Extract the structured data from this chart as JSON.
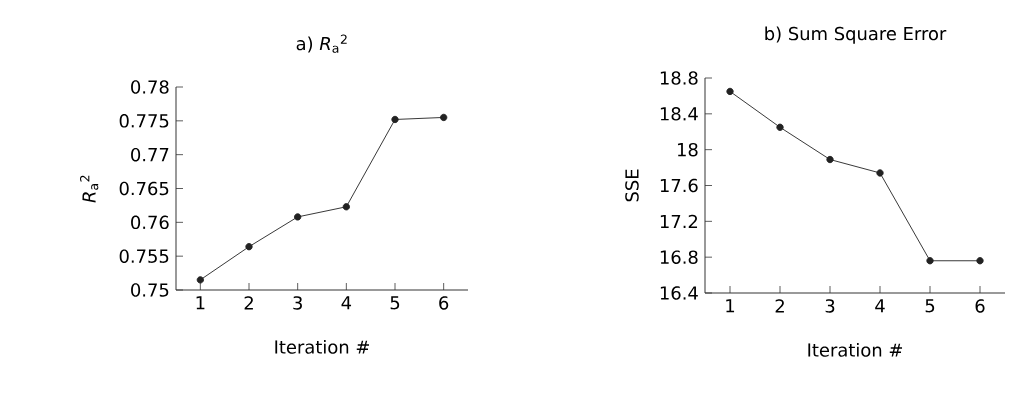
{
  "chart_data": [
    {
      "type": "line",
      "title": "a) *R*$_{a}$$^{2}$",
      "xlabel": "Iteration #",
      "ylabel": "*R*$_{a}$$^{2}$",
      "x": [
        1,
        2,
        3,
        4,
        5,
        6
      ],
      "values": [
        0.7515,
        0.7564,
        0.7608,
        0.7623,
        0.7752,
        0.7755
      ],
      "color": "#222222",
      "marker": "circle",
      "xlim": [
        0.5,
        6.5
      ],
      "ylim": [
        0.75,
        0.78
      ],
      "xticks": [
        1,
        2,
        3,
        4,
        5,
        6
      ],
      "yticks": [
        0.75,
        0.755,
        0.76,
        0.765,
        0.77,
        0.775,
        0.78
      ]
    },
    {
      "type": "line",
      "title": "b) Sum Square Error",
      "xlabel": "Iteration #",
      "ylabel": "SSE",
      "x": [
        1,
        2,
        3,
        4,
        5,
        6
      ],
      "values": [
        18.65,
        18.25,
        17.89,
        17.74,
        16.76,
        16.76
      ],
      "color": "#222222",
      "marker": "circle",
      "xlim": [
        0.5,
        6.5
      ],
      "ylim": [
        16.4,
        18.8
      ],
      "xticks": [
        1,
        2,
        3,
        4,
        5,
        6
      ],
      "yticks": [
        16.4,
        16.8,
        17.2,
        17.6,
        18,
        18.4,
        18.8
      ]
    }
  ]
}
